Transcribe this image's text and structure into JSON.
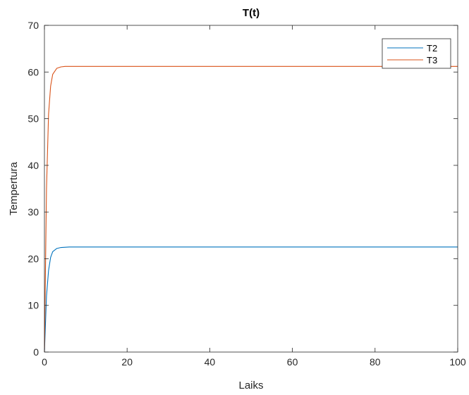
{
  "chart_data": {
    "type": "line",
    "title": "T(t)",
    "xlabel": "Laiks",
    "ylabel": "Tempertura",
    "xlim": [
      0,
      100
    ],
    "ylim": [
      0,
      70
    ],
    "xticks": [
      0,
      20,
      40,
      60,
      80,
      100
    ],
    "yticks": [
      0,
      10,
      20,
      30,
      40,
      50,
      60,
      70
    ],
    "grid": false,
    "legend_position": "top-right",
    "series": [
      {
        "name": "T2",
        "color": "#0072BD",
        "x": [
          0,
          0.5,
          1,
          1.5,
          2,
          3,
          4,
          5,
          6,
          8,
          10,
          20,
          40,
          60,
          80,
          100
        ],
        "y": [
          0,
          12.0,
          17.5,
          20.3,
          21.5,
          22.2,
          22.4,
          22.45,
          22.5,
          22.5,
          22.5,
          22.5,
          22.5,
          22.5,
          22.5,
          22.5
        ]
      },
      {
        "name": "T3",
        "color": "#D95319",
        "x": [
          0,
          0.5,
          1,
          1.5,
          2,
          3,
          4,
          5,
          6,
          8,
          10,
          20,
          40,
          60,
          80,
          100
        ],
        "y": [
          0,
          35.0,
          51.0,
          57.0,
          59.5,
          60.8,
          61.1,
          61.2,
          61.2,
          61.2,
          61.2,
          61.2,
          61.2,
          61.2,
          61.2,
          61.2
        ]
      }
    ]
  }
}
